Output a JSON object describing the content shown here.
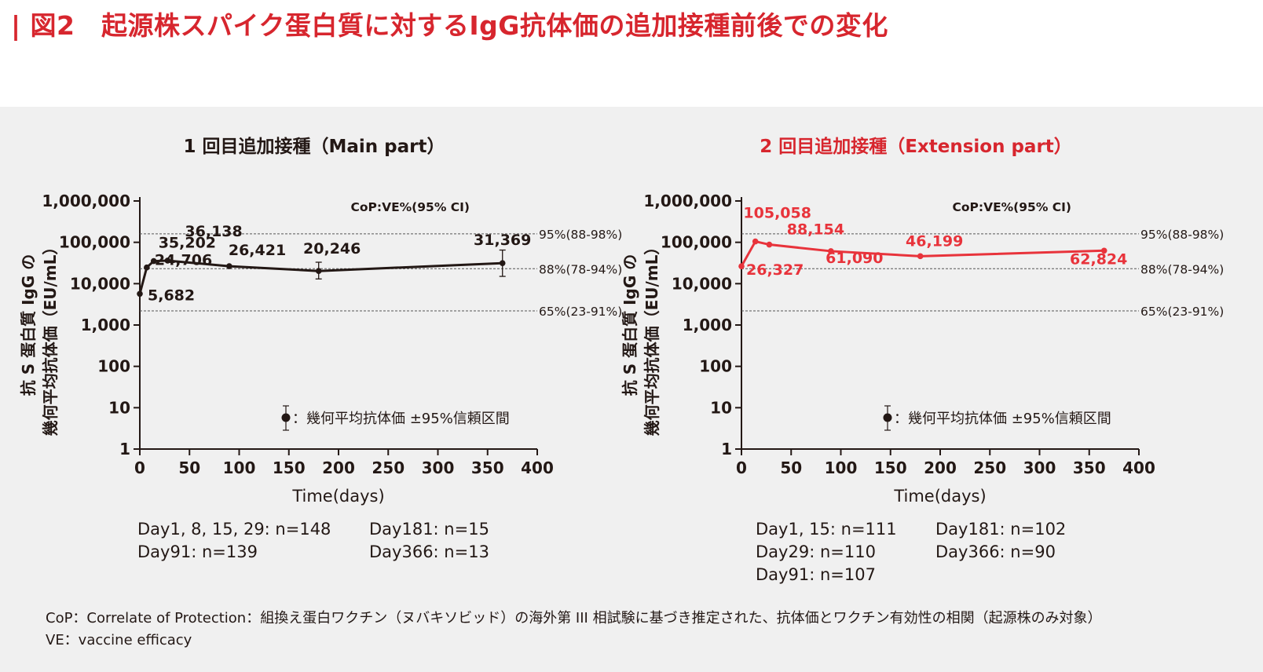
{
  "page_title": "| 図2　起源株スパイク蛋白質に対するIgG抗体価の追加接種前後での変化",
  "chart_data": [
    {
      "type": "line",
      "title": "1 回目追加接種（Main part）",
      "title_color": "#231815",
      "series_color": "#231815",
      "xlabel": "Time(days)",
      "ylabel_line1": "抗 S 蛋白質 IgG の",
      "ylabel_line2": "幾何平均抗体価（EU/mL）",
      "ylabel_line1_raw": "抗 S 蛋白質 IgG の",
      "xlim": [
        0,
        400
      ],
      "ylim": [
        1,
        1000000
      ],
      "yscale": "log",
      "x_ticks": [
        "0",
        "50",
        "100",
        "150",
        "200",
        "250",
        "300",
        "350",
        "400"
      ],
      "y_ticks": [
        "1",
        "10",
        "100",
        "1,000",
        "10,000",
        "100,000",
        "1,000,000"
      ],
      "points": [
        {
          "x": 0,
          "y": 5682,
          "label": "5,682",
          "err_low": null,
          "err_high": null
        },
        {
          "x": 7,
          "y": 24706,
          "label": "24,706",
          "err_low": null,
          "err_high": null
        },
        {
          "x": 14,
          "y": 35202,
          "label": "35,202",
          "err_low": null,
          "err_high": null
        },
        {
          "x": 28,
          "y": 36138,
          "label": "36,138",
          "err_low": null,
          "err_high": null
        },
        {
          "x": 90,
          "y": 26421,
          "label": "26,421",
          "err_low": null,
          "err_high": null
        },
        {
          "x": 180,
          "y": 20246,
          "label": "20,246",
          "err_low": 13000,
          "err_high": 33000
        },
        {
          "x": 365,
          "y": 31369,
          "label": "31,369",
          "err_low": 15000,
          "err_high": 65000
        }
      ],
      "reference_title": "CoP:VE%(95% CI)",
      "reference_lines": [
        {
          "y": 160000,
          "label": "95%(88-98%)"
        },
        {
          "y": 23000,
          "label": "88%(78-94%)"
        },
        {
          "y": 2200,
          "label": "65%(23-91%)"
        }
      ],
      "legend": "：幾何平均抗体価 ±95%信頼区間",
      "notes": {
        "col1": [
          "Day1, 8, 15, 29: n=148",
          "Day91: n=139"
        ],
        "col2": [
          "Day181: n=15",
          "Day366: n=13"
        ]
      }
    },
    {
      "type": "line",
      "title": "2 回目追加接種（Extension part）",
      "title_color": "#d7262e",
      "series_color": "#e8333b",
      "xlabel": "Time(days)",
      "ylabel_line1": "抗 S 蛋白質 IgG の",
      "ylabel_line2": "幾何平均抗体価（EU/mL）",
      "xlim": [
        0,
        400
      ],
      "ylim": [
        1,
        1000000
      ],
      "yscale": "log",
      "x_ticks": [
        "0",
        "50",
        "100",
        "150",
        "200",
        "250",
        "300",
        "350",
        "400"
      ],
      "y_ticks": [
        "1",
        "10",
        "100",
        "1,000",
        "10,000",
        "100,000",
        "1,000,000"
      ],
      "points": [
        {
          "x": 0,
          "y": 26327,
          "label": "26,327",
          "err_low": null,
          "err_high": null
        },
        {
          "x": 14,
          "y": 105058,
          "label": "105,058",
          "err_low": null,
          "err_high": null
        },
        {
          "x": 28,
          "y": 88154,
          "label": "88,154",
          "err_low": null,
          "err_high": null
        },
        {
          "x": 90,
          "y": 61090,
          "label": "61,090",
          "err_low": null,
          "err_high": null
        },
        {
          "x": 180,
          "y": 46199,
          "label": "46,199",
          "err_low": null,
          "err_high": null
        },
        {
          "x": 365,
          "y": 62824,
          "label": "62,824",
          "err_low": null,
          "err_high": null
        }
      ],
      "reference_title": "CoP:VE%(95% CI)",
      "reference_lines": [
        {
          "y": 160000,
          "label": "95%(88-98%)"
        },
        {
          "y": 23000,
          "label": "88%(78-94%)"
        },
        {
          "y": 2200,
          "label": "65%(23-91%)"
        }
      ],
      "legend": "：幾何平均抗体価 ±95%信頼区間",
      "notes": {
        "col1": [
          "Day1, 15: n=111",
          "Day29: n=110",
          "Day91: n=107"
        ],
        "col2": [
          "Day181: n=102",
          "Day366: n=90"
        ]
      }
    }
  ],
  "footnotes": [
    "CoP：Correlate of Protection：組換え蛋白ワクチン（ヌバキソビッド）の海外第 III 相試験に基づき推定された、抗体価とワクチン有効性の相関（起源株のみ対象）",
    "VE：vaccine efficacy"
  ]
}
